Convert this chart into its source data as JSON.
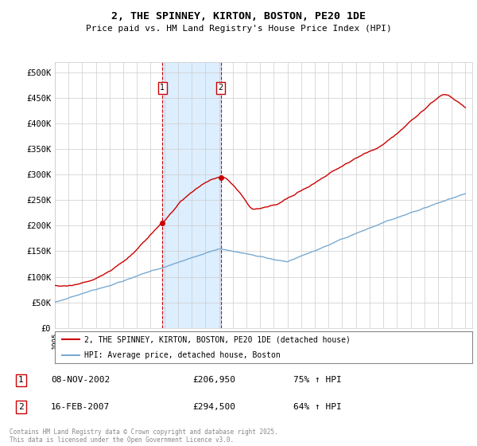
{
  "title": "2, THE SPINNEY, KIRTON, BOSTON, PE20 1DE",
  "subtitle": "Price paid vs. HM Land Registry's House Price Index (HPI)",
  "legend_line1": "2, THE SPINNEY, KIRTON, BOSTON, PE20 1DE (detached house)",
  "legend_line2": "HPI: Average price, detached house, Boston",
  "transaction1_date": "08-NOV-2002",
  "transaction1_price": "£206,950",
  "transaction1_hpi": "75% ↑ HPI",
  "transaction1_year": 2002.86,
  "transaction1_value": 206950,
  "transaction2_date": "16-FEB-2007",
  "transaction2_price": "£294,500",
  "transaction2_hpi": "64% ↑ HPI",
  "transaction2_year": 2007.12,
  "transaction2_value": 294500,
  "hpi_color": "#7aaad0",
  "price_color": "#cc0000",
  "dot_color": "#cc0000",
  "shading_color": "#ddeeff",
  "dashed_color": "#cc0000",
  "grid_color": "#cccccc",
  "bg_color": "#ffffff",
  "footer": "Contains HM Land Registry data © Crown copyright and database right 2025.\nThis data is licensed under the Open Government Licence v3.0.",
  "ylim": [
    0,
    520000
  ],
  "yticks": [
    0,
    50000,
    100000,
    150000,
    200000,
    250000,
    300000,
    350000,
    400000,
    450000,
    500000
  ],
  "ytick_labels": [
    "£0",
    "£50K",
    "£100K",
    "£150K",
    "£200K",
    "£250K",
    "£300K",
    "£350K",
    "£400K",
    "£450K",
    "£500K"
  ],
  "xmin": 1995,
  "xmax": 2025.5,
  "marker1_y": 450000,
  "marker2_y": 450000
}
